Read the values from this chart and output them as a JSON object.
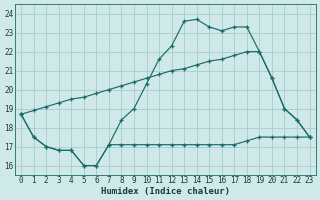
{
  "xlabel": "Humidex (Indice chaleur)",
  "xlim": [
    -0.5,
    23.5
  ],
  "ylim": [
    15.5,
    24.5
  ],
  "xticks": [
    0,
    1,
    2,
    3,
    4,
    5,
    6,
    7,
    8,
    9,
    10,
    11,
    12,
    13,
    14,
    15,
    16,
    17,
    18,
    19,
    20,
    21,
    22,
    23
  ],
  "yticks": [
    16,
    17,
    18,
    19,
    20,
    21,
    22,
    23,
    24
  ],
  "bg_color": "#cfe8e8",
  "grid_color": "#a8cccc",
  "line_color": "#1a6b6b",
  "line1_x": [
    0,
    1,
    2,
    3,
    4,
    5,
    6,
    7,
    8,
    9,
    10,
    11,
    12,
    13,
    14,
    15,
    16,
    17,
    18,
    19,
    20,
    21,
    22,
    23
  ],
  "line1_y": [
    18.7,
    17.5,
    17.0,
    16.8,
    16.8,
    16.0,
    16.0,
    17.1,
    18.4,
    19.0,
    20.3,
    21.6,
    22.3,
    23.6,
    23.7,
    23.3,
    23.1,
    23.3,
    23.3,
    22.0,
    20.6,
    19.0,
    18.4,
    17.5
  ],
  "line2_x": [
    0,
    1,
    2,
    3,
    4,
    5,
    6,
    7,
    8,
    9,
    10,
    11,
    12,
    13,
    14,
    15,
    16,
    17,
    18,
    19,
    20,
    21,
    22,
    23
  ],
  "line2_y": [
    18.7,
    17.5,
    17.0,
    16.8,
    16.8,
    16.0,
    16.0,
    17.1,
    17.1,
    17.1,
    17.1,
    17.1,
    17.1,
    17.1,
    17.1,
    17.1,
    17.1,
    17.1,
    17.3,
    17.5,
    17.5,
    17.5,
    17.5,
    17.5
  ],
  "line3_x": [
    0,
    1,
    2,
    3,
    4,
    5,
    6,
    7,
    8,
    9,
    10,
    11,
    12,
    13,
    14,
    15,
    16,
    17,
    18,
    19,
    20,
    21,
    22,
    23
  ],
  "line3_y": [
    18.7,
    18.9,
    19.1,
    19.3,
    19.5,
    19.6,
    19.8,
    20.0,
    20.2,
    20.4,
    20.6,
    20.8,
    21.0,
    21.1,
    21.3,
    21.5,
    21.6,
    21.8,
    22.0,
    22.0,
    20.6,
    19.0,
    18.4,
    17.5
  ]
}
